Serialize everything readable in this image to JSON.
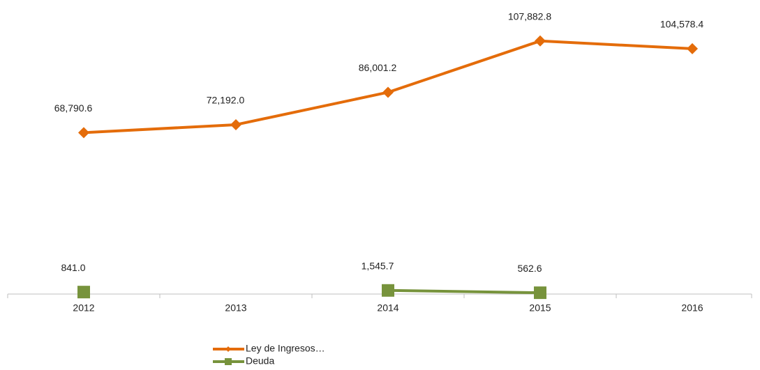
{
  "chart_data": {
    "type": "line",
    "categories": [
      "2012",
      "2013",
      "2014",
      "2015",
      "2016"
    ],
    "series": [
      {
        "name": "Ley de Ingresos…",
        "color": "#e46c0a",
        "marker": "diamond",
        "values": [
          68790.6,
          72192.0,
          86001.2,
          107882.8,
          104578.4
        ],
        "value_labels": [
          "68,790.6",
          "72,192.0",
          "86,001.2",
          "107,882.8",
          "104,578.4"
        ]
      },
      {
        "name": "Deuda",
        "color": "#77933c",
        "marker": "square",
        "values": [
          841.0,
          null,
          1545.7,
          562.6,
          null
        ],
        "value_labels": [
          "841.0",
          null,
          "1,545.7",
          "562.6",
          null
        ]
      }
    ],
    "ylim": [
      0,
      120000
    ],
    "legend": "bottom"
  }
}
